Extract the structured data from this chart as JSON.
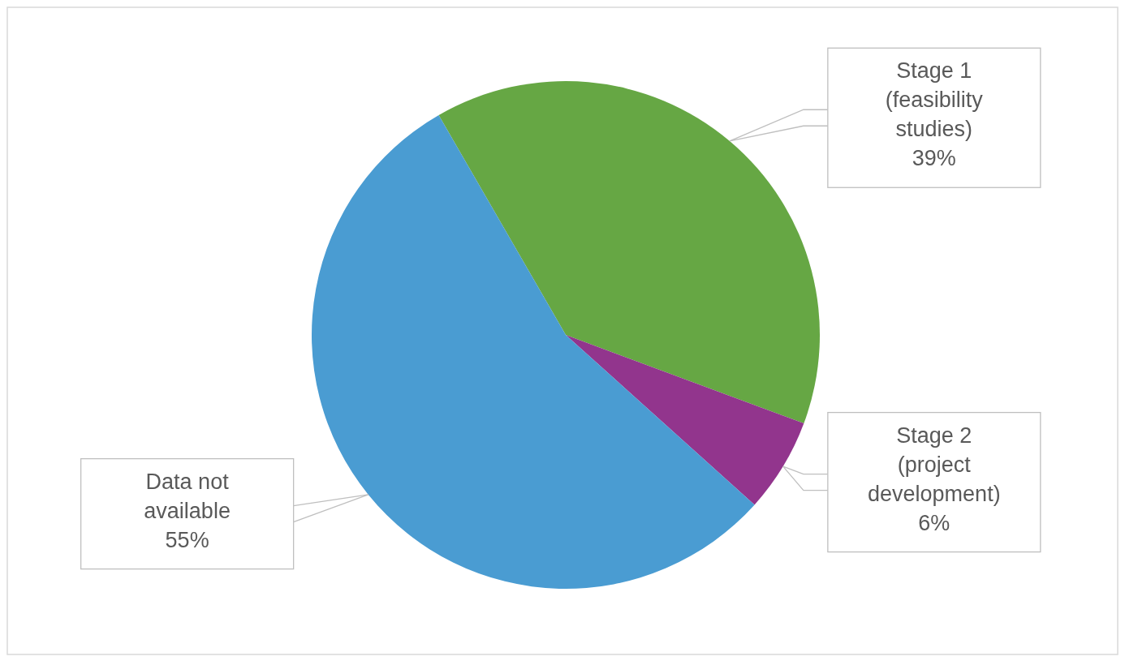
{
  "chart_data": {
    "type": "pie",
    "categories": [
      "Stage 1 (feasibility studies)",
      "Stage 2 (project development)",
      "Data not available"
    ],
    "values": [
      39,
      6,
      55
    ],
    "colors": [
      "#66a744",
      "#92358d",
      "#4a9cd2"
    ],
    "value_labels": [
      "39%",
      "6%",
      "55%"
    ],
    "legend": false
  }
}
